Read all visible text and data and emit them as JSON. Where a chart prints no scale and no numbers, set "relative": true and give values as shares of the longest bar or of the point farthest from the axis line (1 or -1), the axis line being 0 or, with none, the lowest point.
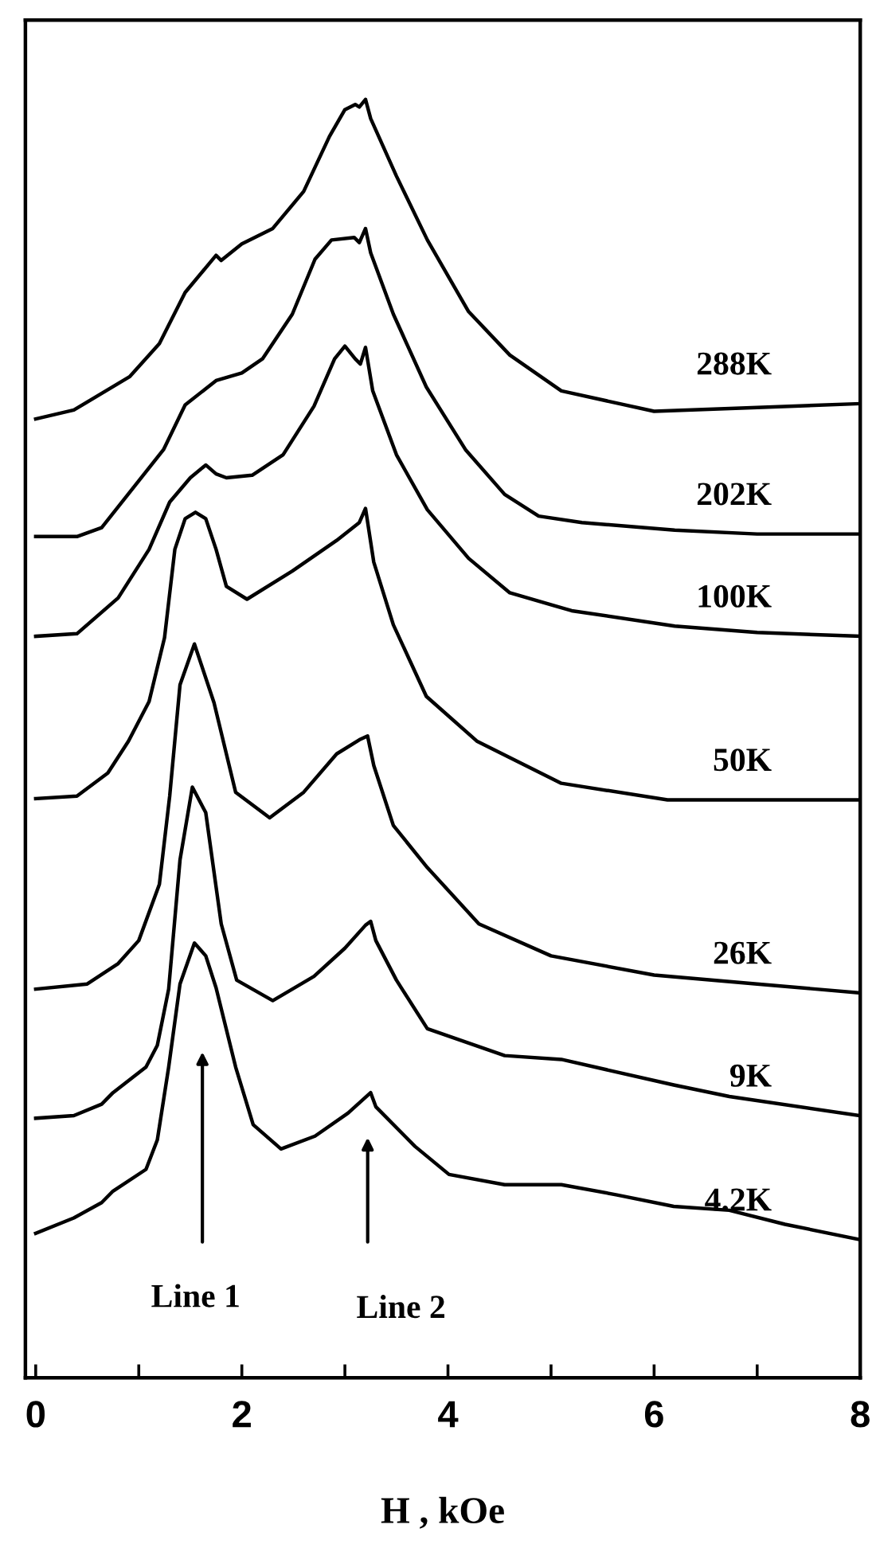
{
  "chart_data": {
    "type": "line",
    "relative": true,
    "xlabel": "H , kOe",
    "xlim": [
      -0.1,
      8
    ],
    "xticks": [
      0,
      {
        "value": 1,
        "label": null
      },
      2,
      {
        "value": 3,
        "label": null
      },
      4,
      {
        "value": 5,
        "label": null
      },
      6,
      {
        "value": 7,
        "label": null
      },
      8
    ],
    "legend": false,
    "grid": false,
    "marker": "none",
    "line_style": "solid",
    "series": [
      {
        "name": "288K",
        "color": "#000000",
        "x": [
          0,
          0.37,
          0.91,
          1.2,
          1.45,
          1.75,
          1.8,
          2.0,
          2.3,
          2.6,
          2.85,
          3.0,
          3.1,
          3.14,
          3.2,
          3.25,
          3.5,
          3.8,
          4.2,
          4.6,
          5.1,
          6.0,
          7.0,
          8
        ],
        "values": [
          0.75,
          0.757,
          0.783,
          0.809,
          0.849,
          0.878,
          0.874,
          0.887,
          0.899,
          0.928,
          0.971,
          0.992,
          0.996,
          0.994,
          1.0,
          0.985,
          0.94,
          0.89,
          0.834,
          0.8,
          0.772,
          0.756,
          0.759,
          0.762
        ]
      },
      {
        "name": "202K",
        "color": "#000000",
        "x": [
          0,
          0.4,
          0.64,
          1.24,
          1.45,
          1.75,
          2.0,
          2.2,
          2.49,
          2.71,
          2.87,
          3.09,
          3.14,
          3.2,
          3.25,
          3.47,
          3.79,
          4.17,
          4.55,
          4.88,
          5.3,
          6.2,
          7.0,
          8
        ],
        "values": [
          0.658,
          0.658,
          0.665,
          0.726,
          0.761,
          0.78,
          0.786,
          0.797,
          0.832,
          0.875,
          0.89,
          0.892,
          0.888,
          0.899,
          0.88,
          0.832,
          0.775,
          0.726,
          0.691,
          0.674,
          0.669,
          0.663,
          0.66,
          0.66
        ]
      },
      {
        "name": "100K",
        "color": "#000000",
        "x": [
          0,
          0.4,
          0.8,
          1.1,
          1.3,
          1.5,
          1.65,
          1.75,
          1.85,
          2.1,
          2.4,
          2.7,
          2.9,
          3.0,
          3.1,
          3.15,
          3.2,
          3.27,
          3.5,
          3.8,
          4.2,
          4.6,
          5.2,
          6.2,
          7.0,
          8
        ],
        "values": [
          0.58,
          0.582,
          0.61,
          0.648,
          0.685,
          0.704,
          0.714,
          0.707,
          0.704,
          0.706,
          0.722,
          0.76,
          0.797,
          0.807,
          0.797,
          0.793,
          0.806,
          0.772,
          0.722,
          0.679,
          0.641,
          0.614,
          0.6,
          0.588,
          0.583,
          0.58
        ]
      },
      {
        "name": "50K",
        "color": "#000000",
        "x": [
          0,
          0.4,
          0.7,
          0.9,
          1.1,
          1.25,
          1.35,
          1.45,
          1.55,
          1.65,
          1.75,
          1.85,
          2.05,
          2.49,
          2.92,
          3.14,
          3.2,
          3.28,
          3.47,
          3.79,
          4.28,
          5.1,
          6.13,
          7.0,
          8
        ],
        "values": [
          0.453,
          0.455,
          0.473,
          0.498,
          0.529,
          0.579,
          0.648,
          0.672,
          0.677,
          0.672,
          0.648,
          0.619,
          0.609,
          0.631,
          0.655,
          0.669,
          0.68,
          0.638,
          0.589,
          0.533,
          0.498,
          0.465,
          0.452,
          0.452,
          0.452
        ]
      },
      {
        "name": "26K",
        "color": "#000000",
        "x": [
          0,
          0.5,
          0.8,
          1.0,
          1.2,
          1.3,
          1.4,
          1.54,
          1.73,
          1.94,
          2.27,
          2.6,
          2.92,
          3.14,
          3.22,
          3.28,
          3.47,
          3.8,
          4.3,
          5.0,
          6.0,
          7.0,
          8
        ],
        "values": [
          0.304,
          0.308,
          0.324,
          0.342,
          0.386,
          0.455,
          0.542,
          0.574,
          0.528,
          0.458,
          0.438,
          0.458,
          0.488,
          0.499,
          0.502,
          0.479,
          0.432,
          0.399,
          0.355,
          0.33,
          0.315,
          0.308,
          0.301
        ]
      },
      {
        "name": "9K",
        "color": "#000000",
        "x": [
          0,
          0.37,
          0.64,
          0.75,
          1.07,
          1.18,
          1.29,
          1.4,
          1.52,
          1.65,
          1.8,
          1.95,
          2.3,
          2.7,
          3.0,
          3.2,
          3.25,
          3.3,
          3.5,
          3.8,
          4.55,
          5.1,
          6.19,
          6.73,
          8
        ],
        "values": [
          0.203,
          0.205,
          0.214,
          0.223,
          0.243,
          0.26,
          0.304,
          0.405,
          0.462,
          0.442,
          0.355,
          0.311,
          0.295,
          0.314,
          0.336,
          0.354,
          0.357,
          0.342,
          0.311,
          0.273,
          0.252,
          0.249,
          0.229,
          0.22,
          0.205
        ]
      },
      {
        "name": "4.2K",
        "color": "#000000",
        "x": [
          0,
          0.37,
          0.64,
          0.75,
          1.07,
          1.18,
          1.29,
          1.4,
          1.54,
          1.65,
          1.75,
          1.94,
          2.11,
          2.38,
          2.71,
          3.03,
          3.25,
          3.3,
          3.68,
          4.01,
          4.55,
          5.1,
          5.64,
          6.19,
          6.73,
          7.27,
          8
        ],
        "values": [
          0.113,
          0.125,
          0.137,
          0.146,
          0.163,
          0.186,
          0.243,
          0.308,
          0.34,
          0.33,
          0.305,
          0.243,
          0.198,
          0.179,
          0.189,
          0.207,
          0.223,
          0.212,
          0.181,
          0.159,
          0.151,
          0.151,
          0.143,
          0.134,
          0.131,
          0.12,
          0.108
        ]
      }
    ],
    "annotations": [
      "Line 1",
      "Line 2"
    ]
  }
}
